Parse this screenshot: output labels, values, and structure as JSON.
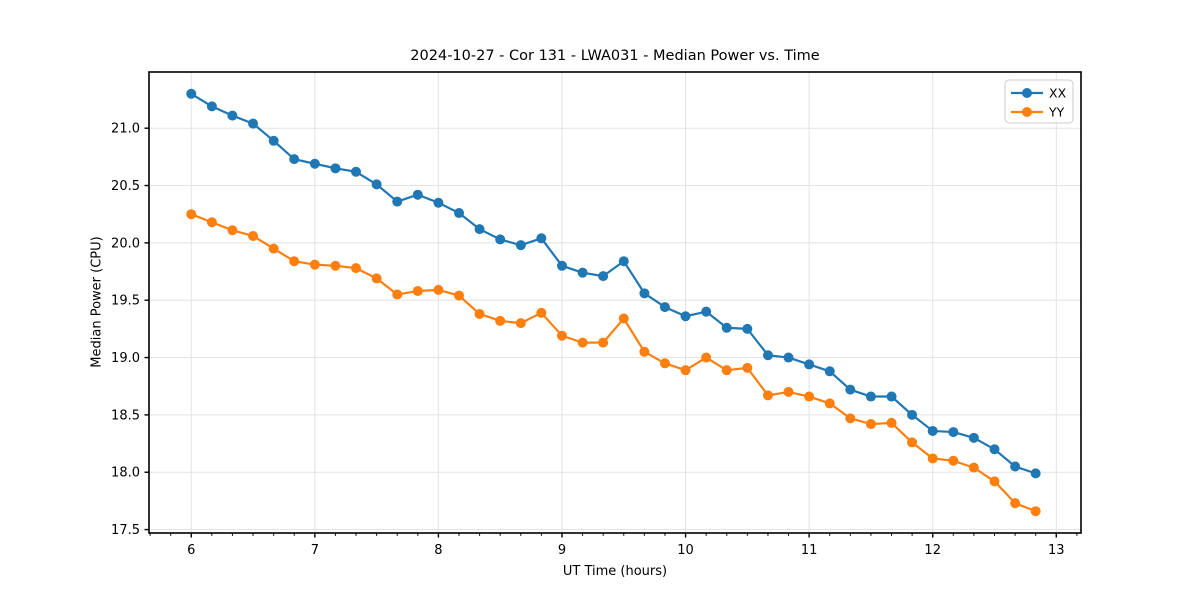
{
  "figure": {
    "title": "2024-10-27 - Cor 131 - LWA031 - Median Power vs. Time",
    "xlabel": "UT Time (hours)",
    "ylabel": "Median Power (CPU)"
  },
  "chart_data": {
    "type": "line",
    "title": "2024-10-27 - Cor 131 - LWA031 - Median Power vs. Time",
    "xlabel": "UT Time (hours)",
    "ylabel": "Median Power (CPU)",
    "xlim": [
      5.658,
      13.2
    ],
    "ylim": [
      17.47,
      21.49
    ],
    "x_ticks": [
      6,
      7,
      8,
      9,
      10,
      11,
      12,
      13
    ],
    "y_ticks": [
      17.5,
      18.0,
      18.5,
      19.0,
      19.5,
      20.0,
      20.5,
      21.0
    ],
    "x_minor_ticks_per_hour": 6,
    "grid": true,
    "legend_position": "upper right",
    "background_color": "#ffffff",
    "grid_color": "#e3e3e3",
    "spine_color": "#000000",
    "x": [
      6.0,
      6.167,
      6.333,
      6.5,
      6.667,
      6.833,
      7.0,
      7.167,
      7.333,
      7.5,
      7.667,
      7.833,
      8.0,
      8.167,
      8.333,
      8.5,
      8.667,
      8.833,
      9.0,
      9.167,
      9.333,
      9.5,
      9.667,
      9.833,
      10.0,
      10.167,
      10.333,
      10.5,
      10.667,
      10.833,
      11.0,
      11.167,
      11.333,
      11.5,
      11.667,
      11.833,
      12.0,
      12.167,
      12.333,
      12.5,
      12.667,
      12.833
    ],
    "series": [
      {
        "name": "XX",
        "color": "#1f77b4",
        "values": [
          21.3,
          21.19,
          21.11,
          21.04,
          20.89,
          20.73,
          20.69,
          20.65,
          20.62,
          20.51,
          20.36,
          20.42,
          20.35,
          20.26,
          20.12,
          20.03,
          19.98,
          20.04,
          19.8,
          19.74,
          19.71,
          19.84,
          19.56,
          19.44,
          19.36,
          19.4,
          19.26,
          19.25,
          19.02,
          19.0,
          18.94,
          18.88,
          18.72,
          18.66,
          18.66,
          18.5,
          18.36,
          18.35,
          18.3,
          18.2,
          18.05,
          17.99
        ],
        "legend_label": "XX"
      },
      {
        "name": "YY",
        "color": "#ff7f0e",
        "values": [
          20.25,
          20.18,
          20.11,
          20.06,
          19.95,
          19.84,
          19.81,
          19.8,
          19.78,
          19.69,
          19.55,
          19.58,
          19.59,
          19.54,
          19.38,
          19.32,
          19.3,
          19.39,
          19.19,
          19.13,
          19.13,
          19.34,
          19.05,
          18.95,
          18.89,
          19.0,
          18.89,
          18.91,
          18.67,
          18.7,
          18.66,
          18.6,
          18.47,
          18.42,
          18.43,
          18.26,
          18.12,
          18.1,
          18.04,
          17.92,
          17.73,
          17.66
        ]
      }
    ]
  }
}
